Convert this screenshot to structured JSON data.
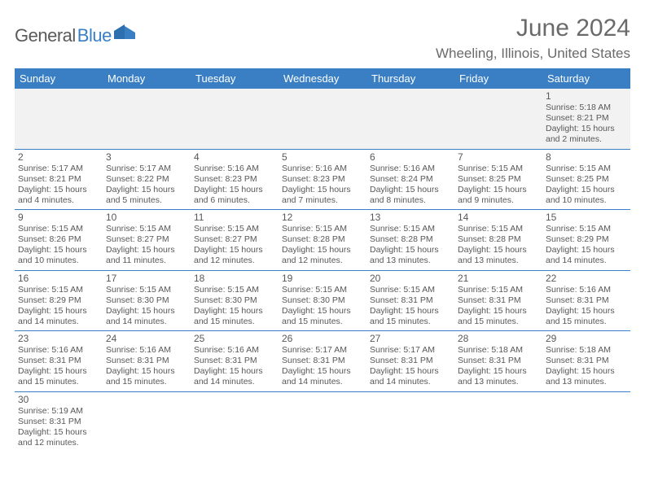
{
  "logo": {
    "part1": "General",
    "part2": "Blue"
  },
  "title": "June 2024",
  "location": "Wheeling, Illinois, United States",
  "colors": {
    "header_bg": "#3a7fc4",
    "header_text": "#ffffff",
    "body_text": "#585858",
    "rule": "#3a7fc4",
    "firstrow_bg": "#f2f2f2",
    "page_bg": "#ffffff",
    "logo_gray": "#5a5a5a",
    "logo_blue": "#3a7fc4",
    "title_gray": "#6a6a6a"
  },
  "fonts": {
    "month_title_pt": 30,
    "location_pt": 17,
    "dayheader_pt": 13,
    "daynum_pt": 12,
    "cell_pt": 10.5
  },
  "day_headers": [
    "Sunday",
    "Monday",
    "Tuesday",
    "Wednesday",
    "Thursday",
    "Friday",
    "Saturday"
  ],
  "weeks": [
    [
      null,
      null,
      null,
      null,
      null,
      null,
      {
        "d": "1",
        "sr": "Sunrise: 5:18 AM",
        "ss": "Sunset: 8:21 PM",
        "dl1": "Daylight: 15 hours",
        "dl2": "and 2 minutes."
      }
    ],
    [
      {
        "d": "2",
        "sr": "Sunrise: 5:17 AM",
        "ss": "Sunset: 8:21 PM",
        "dl1": "Daylight: 15 hours",
        "dl2": "and 4 minutes."
      },
      {
        "d": "3",
        "sr": "Sunrise: 5:17 AM",
        "ss": "Sunset: 8:22 PM",
        "dl1": "Daylight: 15 hours",
        "dl2": "and 5 minutes."
      },
      {
        "d": "4",
        "sr": "Sunrise: 5:16 AM",
        "ss": "Sunset: 8:23 PM",
        "dl1": "Daylight: 15 hours",
        "dl2": "and 6 minutes."
      },
      {
        "d": "5",
        "sr": "Sunrise: 5:16 AM",
        "ss": "Sunset: 8:23 PM",
        "dl1": "Daylight: 15 hours",
        "dl2": "and 7 minutes."
      },
      {
        "d": "6",
        "sr": "Sunrise: 5:16 AM",
        "ss": "Sunset: 8:24 PM",
        "dl1": "Daylight: 15 hours",
        "dl2": "and 8 minutes."
      },
      {
        "d": "7",
        "sr": "Sunrise: 5:15 AM",
        "ss": "Sunset: 8:25 PM",
        "dl1": "Daylight: 15 hours",
        "dl2": "and 9 minutes."
      },
      {
        "d": "8",
        "sr": "Sunrise: 5:15 AM",
        "ss": "Sunset: 8:25 PM",
        "dl1": "Daylight: 15 hours",
        "dl2": "and 10 minutes."
      }
    ],
    [
      {
        "d": "9",
        "sr": "Sunrise: 5:15 AM",
        "ss": "Sunset: 8:26 PM",
        "dl1": "Daylight: 15 hours",
        "dl2": "and 10 minutes."
      },
      {
        "d": "10",
        "sr": "Sunrise: 5:15 AM",
        "ss": "Sunset: 8:27 PM",
        "dl1": "Daylight: 15 hours",
        "dl2": "and 11 minutes."
      },
      {
        "d": "11",
        "sr": "Sunrise: 5:15 AM",
        "ss": "Sunset: 8:27 PM",
        "dl1": "Daylight: 15 hours",
        "dl2": "and 12 minutes."
      },
      {
        "d": "12",
        "sr": "Sunrise: 5:15 AM",
        "ss": "Sunset: 8:28 PM",
        "dl1": "Daylight: 15 hours",
        "dl2": "and 12 minutes."
      },
      {
        "d": "13",
        "sr": "Sunrise: 5:15 AM",
        "ss": "Sunset: 8:28 PM",
        "dl1": "Daylight: 15 hours",
        "dl2": "and 13 minutes."
      },
      {
        "d": "14",
        "sr": "Sunrise: 5:15 AM",
        "ss": "Sunset: 8:28 PM",
        "dl1": "Daylight: 15 hours",
        "dl2": "and 13 minutes."
      },
      {
        "d": "15",
        "sr": "Sunrise: 5:15 AM",
        "ss": "Sunset: 8:29 PM",
        "dl1": "Daylight: 15 hours",
        "dl2": "and 14 minutes."
      }
    ],
    [
      {
        "d": "16",
        "sr": "Sunrise: 5:15 AM",
        "ss": "Sunset: 8:29 PM",
        "dl1": "Daylight: 15 hours",
        "dl2": "and 14 minutes."
      },
      {
        "d": "17",
        "sr": "Sunrise: 5:15 AM",
        "ss": "Sunset: 8:30 PM",
        "dl1": "Daylight: 15 hours",
        "dl2": "and 14 minutes."
      },
      {
        "d": "18",
        "sr": "Sunrise: 5:15 AM",
        "ss": "Sunset: 8:30 PM",
        "dl1": "Daylight: 15 hours",
        "dl2": "and 15 minutes."
      },
      {
        "d": "19",
        "sr": "Sunrise: 5:15 AM",
        "ss": "Sunset: 8:30 PM",
        "dl1": "Daylight: 15 hours",
        "dl2": "and 15 minutes."
      },
      {
        "d": "20",
        "sr": "Sunrise: 5:15 AM",
        "ss": "Sunset: 8:31 PM",
        "dl1": "Daylight: 15 hours",
        "dl2": "and 15 minutes."
      },
      {
        "d": "21",
        "sr": "Sunrise: 5:15 AM",
        "ss": "Sunset: 8:31 PM",
        "dl1": "Daylight: 15 hours",
        "dl2": "and 15 minutes."
      },
      {
        "d": "22",
        "sr": "Sunrise: 5:16 AM",
        "ss": "Sunset: 8:31 PM",
        "dl1": "Daylight: 15 hours",
        "dl2": "and 15 minutes."
      }
    ],
    [
      {
        "d": "23",
        "sr": "Sunrise: 5:16 AM",
        "ss": "Sunset: 8:31 PM",
        "dl1": "Daylight: 15 hours",
        "dl2": "and 15 minutes."
      },
      {
        "d": "24",
        "sr": "Sunrise: 5:16 AM",
        "ss": "Sunset: 8:31 PM",
        "dl1": "Daylight: 15 hours",
        "dl2": "and 15 minutes."
      },
      {
        "d": "25",
        "sr": "Sunrise: 5:16 AM",
        "ss": "Sunset: 8:31 PM",
        "dl1": "Daylight: 15 hours",
        "dl2": "and 14 minutes."
      },
      {
        "d": "26",
        "sr": "Sunrise: 5:17 AM",
        "ss": "Sunset: 8:31 PM",
        "dl1": "Daylight: 15 hours",
        "dl2": "and 14 minutes."
      },
      {
        "d": "27",
        "sr": "Sunrise: 5:17 AM",
        "ss": "Sunset: 8:31 PM",
        "dl1": "Daylight: 15 hours",
        "dl2": "and 14 minutes."
      },
      {
        "d": "28",
        "sr": "Sunrise: 5:18 AM",
        "ss": "Sunset: 8:31 PM",
        "dl1": "Daylight: 15 hours",
        "dl2": "and 13 minutes."
      },
      {
        "d": "29",
        "sr": "Sunrise: 5:18 AM",
        "ss": "Sunset: 8:31 PM",
        "dl1": "Daylight: 15 hours",
        "dl2": "and 13 minutes."
      }
    ],
    [
      {
        "d": "30",
        "sr": "Sunrise: 5:19 AM",
        "ss": "Sunset: 8:31 PM",
        "dl1": "Daylight: 15 hours",
        "dl2": "and 12 minutes."
      },
      null,
      null,
      null,
      null,
      null,
      null
    ]
  ]
}
